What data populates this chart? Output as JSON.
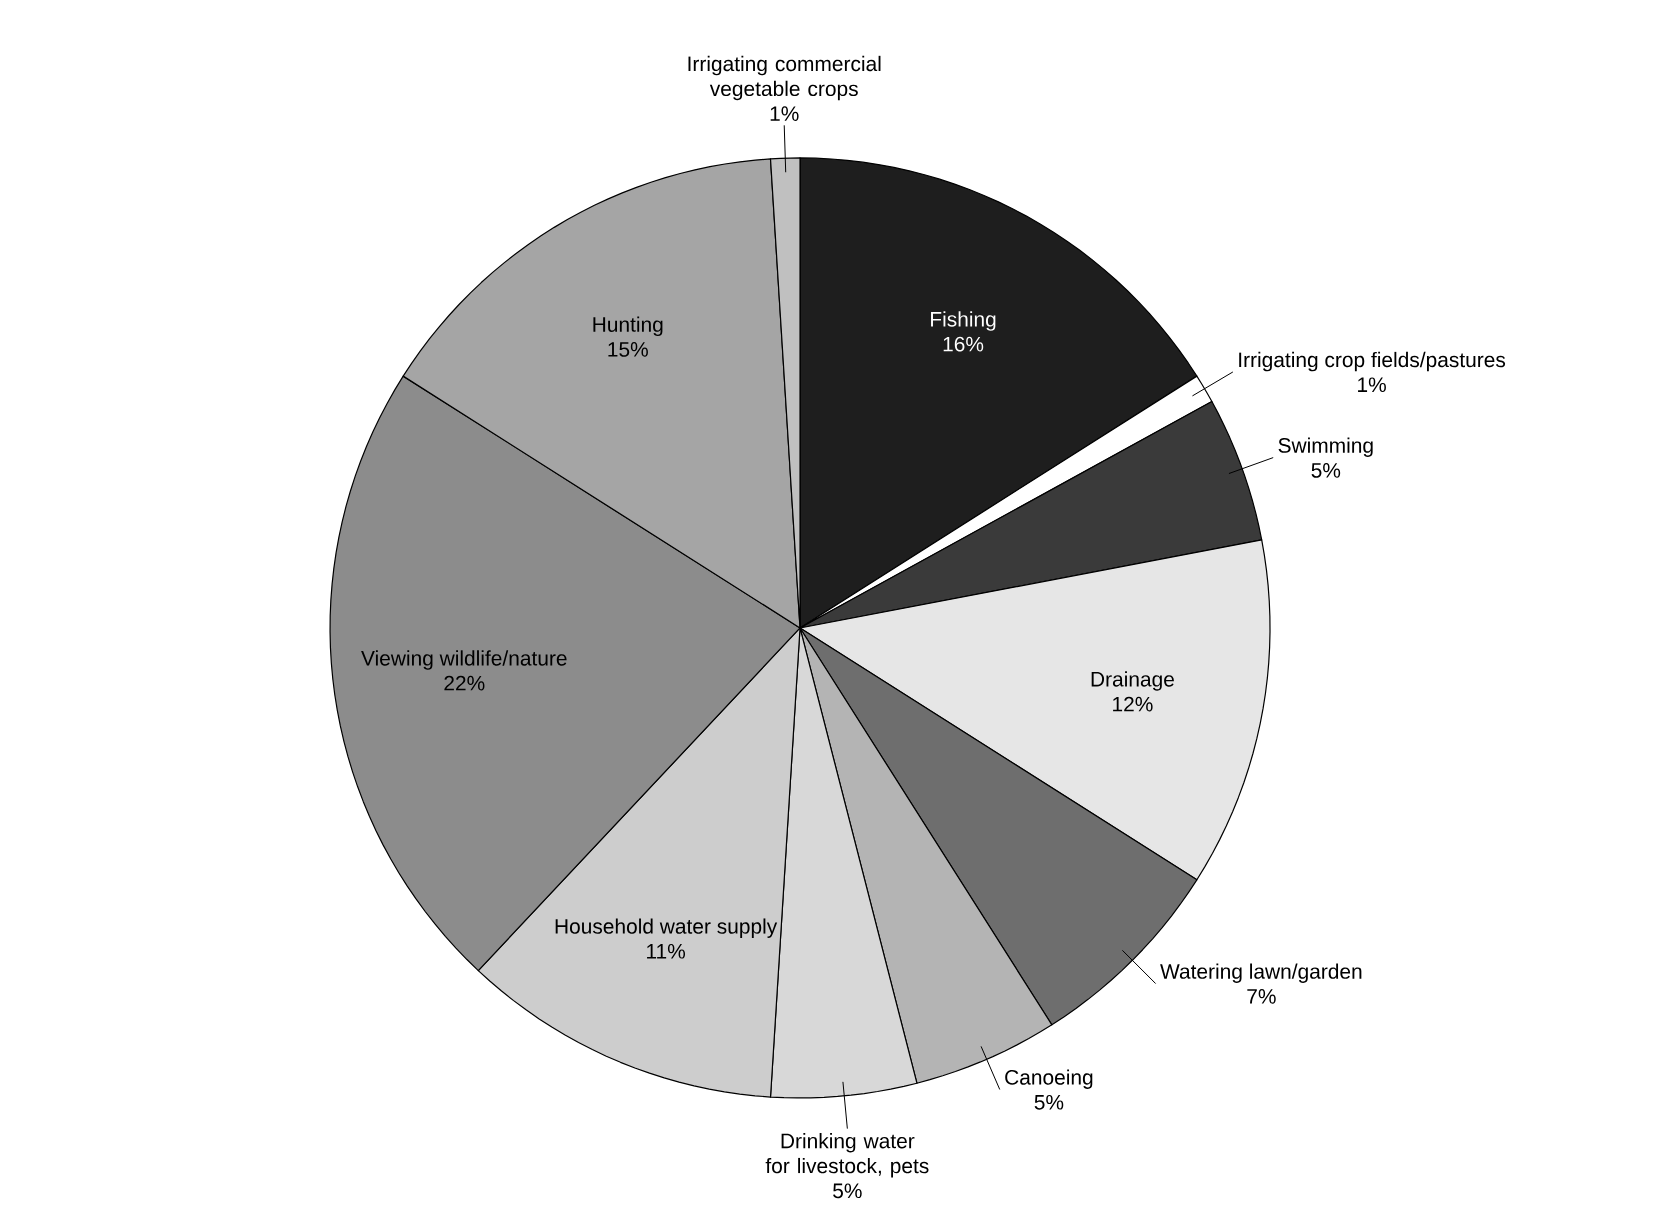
{
  "chart_data": {
    "type": "pie",
    "categories": [
      "Fishing",
      "Irrigating crop fields/pastures",
      "Swimming",
      "Drainage",
      "Watering lawn/garden",
      "Canoeing",
      "Drinking water for livestock, pets",
      "Household water supply",
      "Viewing wildlife/nature",
      "Hunting",
      "Irrigating commercial vegetable crops"
    ],
    "values": [
      16,
      1,
      5,
      12,
      7,
      5,
      5,
      11,
      22,
      15,
      1
    ],
    "value_labels": [
      "16%",
      "1%",
      "5%",
      "12%",
      "7%",
      "5%",
      "5%",
      "11%",
      "22%",
      "15%",
      "1%"
    ],
    "colors": [
      "#1e1e1e",
      "#ffffff",
      "#3a3a3a",
      "#e6e6e6",
      "#6e6e6e",
      "#b4b4b4",
      "#d8d8d8",
      "#cdcdcd",
      "#8c8c8c",
      "#a5a5a5",
      "#c0c0c0"
    ]
  }
}
